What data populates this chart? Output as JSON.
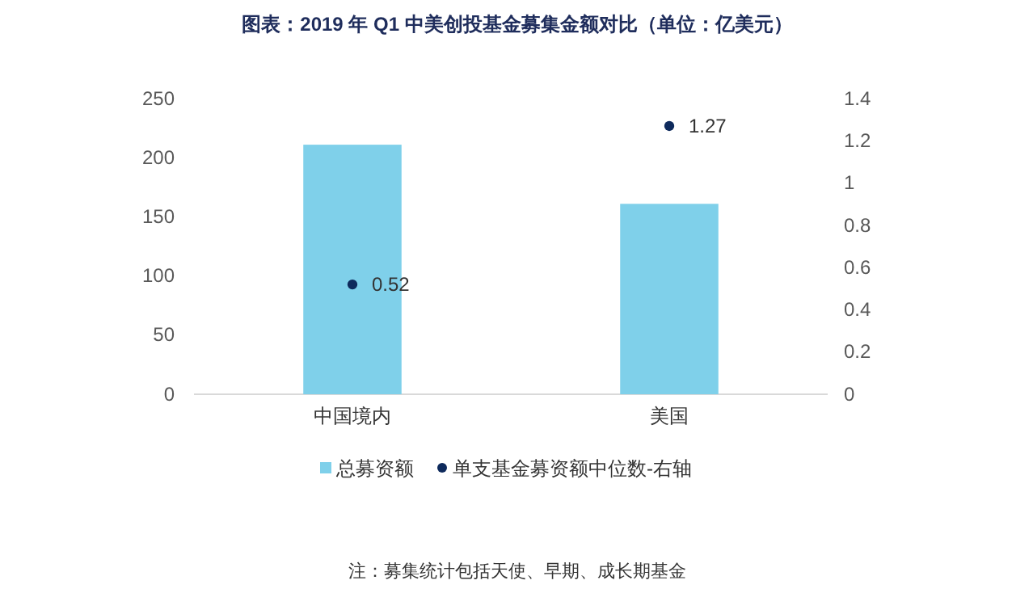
{
  "chart_data": {
    "type": "bar",
    "title": "图表：2019 年 Q1 中美创投基金募集金额对比（单位：亿美元）",
    "categories": [
      "中国境内",
      "美国"
    ],
    "series": [
      {
        "name": "总募资额",
        "type": "bar",
        "color": "#7fd0ea",
        "values": [
          211,
          161
        ]
      },
      {
        "name": "单支基金募资额中位数-右轴",
        "type": "scatter",
        "axis": "y2",
        "color": "#0e2a5c",
        "values": [
          0.52,
          1.27
        ],
        "value_labels": [
          "0.52",
          "1.27"
        ]
      }
    ],
    "ylim": [
      0,
      250
    ],
    "yticks": [
      0,
      50,
      100,
      150,
      200,
      250
    ],
    "y2lim": [
      0,
      1.4
    ],
    "y2ticks": [
      0,
      0.2,
      0.4,
      0.6,
      0.8,
      1,
      1.2,
      1.4
    ],
    "marker": "circle",
    "legend": "bottom",
    "grid": false,
    "annotations": [
      "注：募集统计包括天使、早期、成长期基金"
    ]
  }
}
